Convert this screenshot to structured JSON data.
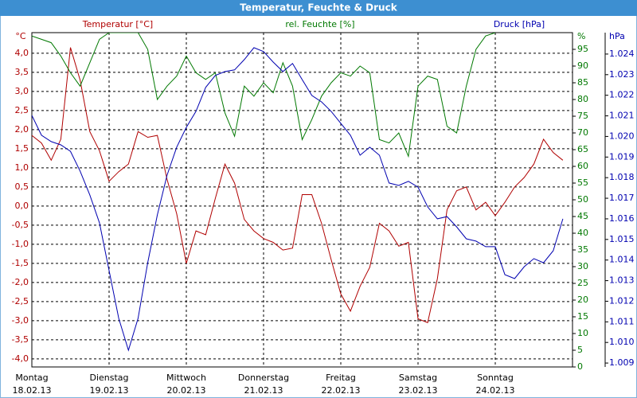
{
  "chart_data": {
    "type": "line",
    "title": "Temperatur, Feuchte & Druck",
    "y_unit": "°C",
    "y2_unit": "%",
    "y3_unit": "hPa",
    "xlim": [
      0,
      7
    ],
    "xticks": [
      {
        "value": 0,
        "label": "Montag"
      },
      {
        "value": 1,
        "label": "Dienstag"
      },
      {
        "value": 2,
        "label": "Mittwoch"
      },
      {
        "value": 3,
        "label": "Donnerstag"
      },
      {
        "value": 4,
        "label": "Freitag"
      },
      {
        "value": 5,
        "label": "Samstag"
      },
      {
        "value": 6,
        "label": "Sonntag"
      }
    ],
    "xtick_dates": [
      "18.02.13",
      "19.02.13",
      "20.02.13",
      "21.02.13",
      "22.02.13",
      "23.02.13",
      "24.02.13"
    ],
    "ylim": [
      -4.21,
      4.54
    ],
    "yticks": [
      {
        "value": -4,
        "label": "-4,0"
      },
      {
        "value": -3.5,
        "label": "-3,5"
      },
      {
        "value": -3,
        "label": "-3,0"
      },
      {
        "value": -2.5,
        "label": "-2,5"
      },
      {
        "value": -2,
        "label": "-2,0"
      },
      {
        "value": -1.5,
        "label": "-1,5"
      },
      {
        "value": -1,
        "label": "-1,0"
      },
      {
        "value": -0.5,
        "label": "-0,5"
      },
      {
        "value": 0,
        "label": "0,0"
      },
      {
        "value": 0.5,
        "label": "0,5"
      },
      {
        "value": 1,
        "label": "1,0"
      },
      {
        "value": 1.5,
        "label": "1,5"
      },
      {
        "value": 2,
        "label": "2,0"
      },
      {
        "value": 2.5,
        "label": "2,5"
      },
      {
        "value": 3,
        "label": "3,0"
      },
      {
        "value": 3.5,
        "label": "3,5"
      },
      {
        "value": 4,
        "label": "4,0"
      }
    ],
    "y2lim": [
      0,
      100
    ],
    "y2ticks": [
      0,
      5,
      10,
      15,
      20,
      25,
      30,
      35,
      40,
      45,
      50,
      55,
      60,
      65,
      70,
      75,
      80,
      85,
      90,
      95
    ],
    "y3lim": [
      1.00881,
      1.02504
    ],
    "y3ticks": [
      1.009,
      {
        "value": 1.01,
        "label": "1.010"
      },
      1.011,
      1.012,
      1.013,
      1.014,
      1.015,
      1.016,
      1.017,
      1.018,
      1.019,
      {
        "value": 1.02,
        "label": "1.020"
      },
      1.021,
      1.022,
      1.023,
      1.024
    ],
    "grid": true,
    "x": [
      0,
      0.125,
      0.25,
      0.375,
      0.5,
      0.625,
      0.75,
      0.875,
      1,
      1.125,
      1.25,
      1.375,
      1.5,
      1.625,
      1.75,
      1.875,
      2,
      2.125,
      2.25,
      2.375,
      2.5,
      2.625,
      2.75,
      2.875,
      3,
      3.125,
      3.25,
      3.375,
      3.5,
      3.625,
      3.75,
      3.875,
      4,
      4.125,
      4.25,
      4.375,
      4.5,
      4.625,
      4.75,
      4.875,
      5,
      5.125,
      5.25,
      5.375,
      5.5,
      5.625,
      5.75,
      5.875,
      6,
      6.125,
      6.25,
      6.375,
      6.5,
      6.625,
      6.75,
      6.875
    ],
    "series": [
      {
        "name": "Temperatur [°C]",
        "color": "#b00000",
        "axis": "y",
        "values": [
          1.85,
          1.65,
          1.2,
          1.75,
          4.15,
          3.3,
          1.95,
          1.45,
          0.65,
          0.9,
          1.1,
          1.95,
          1.8,
          1.85,
          0.7,
          -0.2,
          -1.5,
          -0.65,
          -0.75,
          0.2,
          1.1,
          0.6,
          -0.35,
          -0.65,
          -0.85,
          -0.95,
          -1.15,
          -1.1,
          0.3,
          0.3,
          -0.45,
          -1.4,
          -2.3,
          -2.75,
          -2.1,
          -1.6,
          -0.45,
          -0.65,
          -1.05,
          -0.95,
          -2.95,
          -3.05,
          -1.9,
          -0.1,
          0.4,
          0.5,
          -0.1,
          0.1,
          -0.25,
          0.1,
          0.5,
          0.75,
          1.1,
          1.75,
          1.4,
          1.2
        ]
      },
      {
        "name": "rel. Feuchte [%]",
        "color": "#007800",
        "axis": "y2",
        "values": [
          99,
          98,
          97,
          93,
          88,
          84,
          91,
          98,
          100,
          100,
          100,
          100,
          95,
          80,
          84,
          87,
          93,
          88,
          86,
          88,
          76,
          69,
          84,
          81,
          85,
          82,
          91,
          84,
          68,
          74,
          81,
          85,
          88,
          87,
          90,
          88,
          68,
          67,
          70,
          63,
          84,
          87,
          86,
          72,
          70,
          84,
          95,
          99,
          100,
          null,
          null,
          null,
          null,
          null,
          null,
          null
        ]
      },
      {
        "name": "Druck [hPa]",
        "color": "#0000b0",
        "axis": "y3",
        "values": [
          1.02102,
          1.02006,
          1.01975,
          1.01959,
          1.01928,
          1.01832,
          1.01716,
          1.01581,
          1.01349,
          1.01117,
          1.00962,
          1.01117,
          1.01387,
          1.01619,
          1.01812,
          1.01948,
          1.02044,
          1.02122,
          1.02238,
          1.02296,
          1.02315,
          1.02323,
          1.02373,
          1.02431,
          1.02412,
          1.02361,
          1.02315,
          1.02354,
          1.02276,
          1.02199,
          1.02168,
          1.02122,
          1.02064,
          1.02006,
          1.01909,
          1.01948,
          1.01909,
          1.01774,
          1.01762,
          1.01782,
          1.01754,
          1.01658,
          1.016,
          1.01611,
          1.01561,
          1.01503,
          1.01492,
          1.01465,
          1.01465,
          1.01329,
          1.0131,
          1.01368,
          1.01407,
          1.01387,
          1.01445,
          1.016
        ]
      }
    ]
  }
}
